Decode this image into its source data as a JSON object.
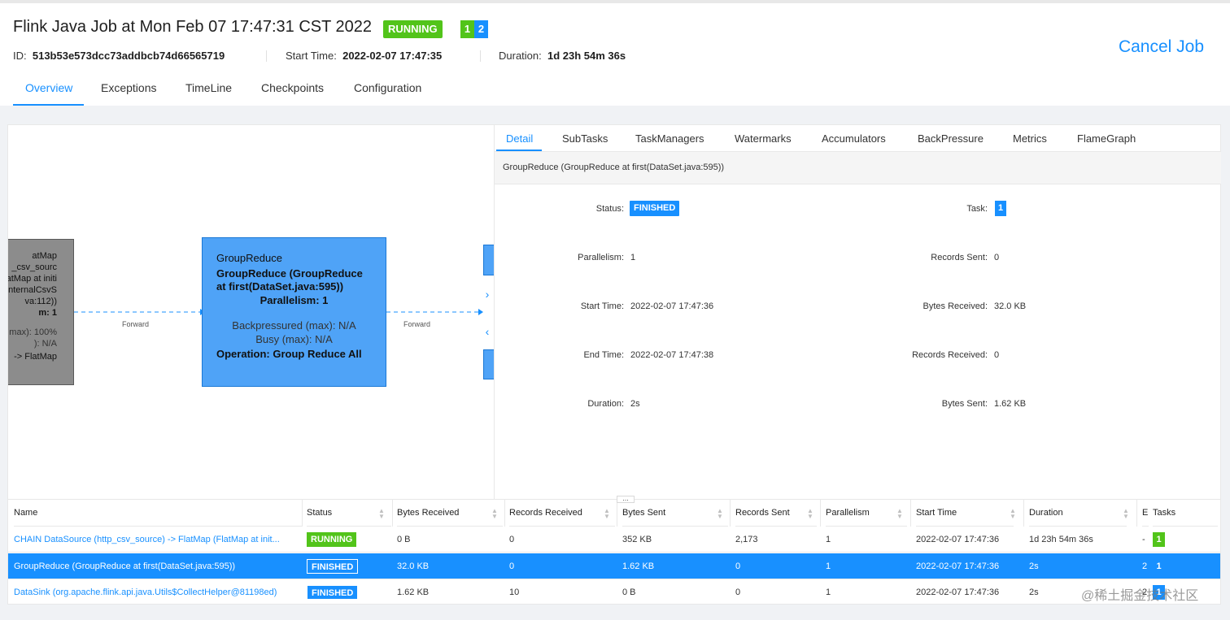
{
  "job": {
    "title": "Flink Java Job at Mon Feb 07 17:47:31 CST 2022",
    "status": "RUNNING",
    "task_counts": [
      "1",
      "2"
    ],
    "id_label": "ID:",
    "id_value": "513b53e573dcc73addbcb74d66565719",
    "start_label": "Start Time:",
    "start_value": "2022-02-07 17:47:35",
    "duration_label": "Duration:",
    "duration_value": "1d 23h 54m 36s",
    "cancel_label": "Cancel Job"
  },
  "tabs": [
    "Overview",
    "Exceptions",
    "TimeLine",
    "Checkpoints",
    "Configuration"
  ],
  "graph": {
    "left_node_lines": [
      "atMap",
      "_csv_sourc",
      "atMap at initi",
      "internalCsvS",
      "va:112))",
      "m: 1",
      "max): 100%",
      "): N/A",
      "-> FlatMap"
    ],
    "center_node": {
      "name": "GroupReduce",
      "desc_line1": "GroupReduce (GroupReduce",
      "desc_line2": "at first(DataSet.java:595))",
      "parallelism": "Parallelism: 1",
      "backpressured": "Backpressured (max): N/A",
      "busy": "Busy (max): N/A",
      "operation": "Operation: Group Reduce All"
    },
    "edge_label": "Forward"
  },
  "detail": {
    "tabs": [
      "Detail",
      "SubTasks",
      "TaskManagers",
      "Watermarks",
      "Accumulators",
      "BackPressure",
      "Metrics",
      "FlameGraph"
    ],
    "vertex_name": "GroupReduce (GroupReduce at first(DataSet.java:595))",
    "left": [
      {
        "label": "Status",
        "value": "FINISHED"
      },
      {
        "label": "Parallelism",
        "value": "1"
      },
      {
        "label": "Start Time",
        "value": "2022-02-07 17:47:36"
      },
      {
        "label": "End Time",
        "value": "2022-02-07 17:47:38"
      },
      {
        "label": "Duration",
        "value": "2s"
      }
    ],
    "right": [
      {
        "label": "Task",
        "value": "1"
      },
      {
        "label": "Records Sent",
        "value": "0"
      },
      {
        "label": "Bytes Received",
        "value": "32.0 KB"
      },
      {
        "label": "Records Received",
        "value": "0"
      },
      {
        "label": "Bytes Sent",
        "value": "1.62 KB"
      }
    ]
  },
  "table": {
    "columns": [
      "Name",
      "Status",
      "Bytes Received",
      "Records Received",
      "Bytes Sent",
      "Records Sent",
      "Parallelism",
      "Start Time",
      "Duration",
      "E",
      "Tasks"
    ],
    "rows": [
      {
        "name": "CHAIN DataSource (http_csv_source) -> FlatMap (FlatMap at init...",
        "status": "RUNNING",
        "bytes_received": "0 B",
        "records_received": "0",
        "bytes_sent": "352 KB",
        "records_sent": "2,173",
        "parallelism": "1",
        "start_time": "2022-02-07 17:47:36",
        "duration": "1d 23h 54m 36s",
        "end": "-",
        "tasks": "1"
      },
      {
        "name": "GroupReduce (GroupReduce at first(DataSet.java:595))",
        "status": "FINISHED",
        "bytes_received": "32.0 KB",
        "records_received": "0",
        "bytes_sent": "1.62 KB",
        "records_sent": "0",
        "parallelism": "1",
        "start_time": "2022-02-07 17:47:36",
        "duration": "2s",
        "end": "2",
        "tasks": "1"
      },
      {
        "name": "DataSink (org.apache.flink.api.java.Utils$CollectHelper@81198ed)",
        "status": "FINISHED",
        "bytes_received": "1.62 KB",
        "records_received": "10",
        "bytes_sent": "0 B",
        "records_sent": "0",
        "parallelism": "1",
        "start_time": "2022-02-07 17:47:36",
        "duration": "2s",
        "end": "2",
        "tasks": "1"
      }
    ]
  },
  "watermark": "@稀土掘金技术社区",
  "colors": {
    "accent": "#1890ff",
    "running": "#52c41a",
    "node": "#4fa3f7"
  }
}
